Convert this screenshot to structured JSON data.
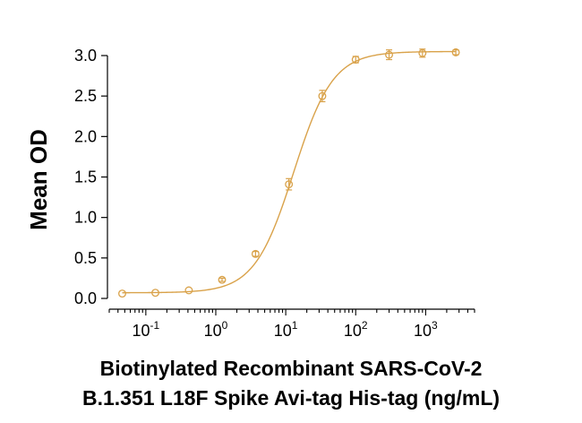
{
  "chart_data": {
    "type": "scatter",
    "title": "",
    "xlabel_lines": [
      "Biotinylated Recombinant SARS-CoV-2",
      "B.1.351 L18F Spike Avi-tag His-tag (ng/mL)"
    ],
    "ylabel": "Mean OD",
    "x_scale": "log",
    "xlim": [
      0.03,
      5000
    ],
    "ylim": [
      0,
      3.0
    ],
    "y_ticks": [
      0.0,
      0.5,
      1.0,
      1.5,
      2.0,
      2.5,
      3.0
    ],
    "y_tick_labels": [
      "0.0",
      "0.5",
      "1.0",
      "1.5",
      "2.0",
      "2.5",
      "3.0"
    ],
    "x_major_ticks": [
      0.1,
      1,
      10,
      100,
      1000
    ],
    "x_tick_labels": [
      {
        "base": "10",
        "exp": "-1"
      },
      {
        "base": "10",
        "exp": "0"
      },
      {
        "base": "10",
        "exp": "1"
      },
      {
        "base": "10",
        "exp": "2"
      },
      {
        "base": "10",
        "exp": "3"
      }
    ],
    "grid": false,
    "legend": "none",
    "series": [
      {
        "x": [
          0.046,
          0.137,
          0.412,
          1.23,
          3.7,
          11.1,
          33.3,
          100,
          300,
          900,
          2700
        ],
        "y": [
          0.06,
          0.07,
          0.1,
          0.23,
          0.55,
          1.41,
          2.5,
          2.95,
          3.01,
          3.03,
          3.04
        ],
        "err": [
          0.01,
          0.01,
          0.01,
          0.02,
          0.03,
          0.07,
          0.07,
          0.04,
          0.06,
          0.05,
          0.03
        ],
        "color": "#d9a24a"
      }
    ],
    "fit": {
      "model": "4PL",
      "bottom": 0.07,
      "top": 3.05,
      "ec50": 13.0,
      "hill": 1.55
    }
  }
}
